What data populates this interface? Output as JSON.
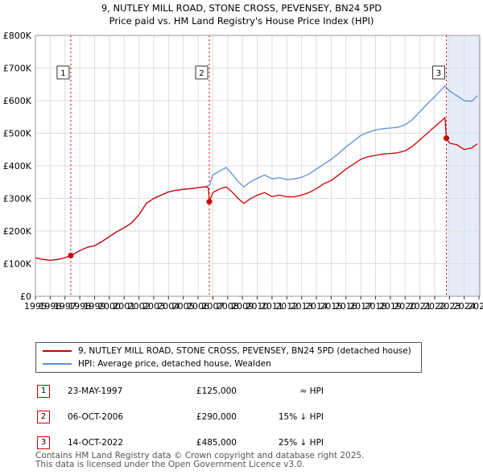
{
  "colors": {
    "property_line": "#cc0000",
    "hpi_line": "#5b8fd6",
    "shade": "#e6edf8",
    "marker_border": "#cc0000",
    "grid": "#dddddd"
  },
  "chart_data": {
    "type": "line",
    "title": "9, NUTLEY MILL ROAD, STONE CROSS, PEVENSEY, BN24 5PD",
    "subtitle": "Price paid vs. HM Land Registry's House Price Index (HPI)",
    "xlim": [
      1995.0,
      2025.05
    ],
    "ylim": [
      0,
      800000
    ],
    "x_ticks": [
      1995,
      1996,
      1997,
      1998,
      1999,
      2000,
      2001,
      2002,
      2003,
      2004,
      2005,
      2006,
      2007,
      2008,
      2009,
      2010,
      2011,
      2012,
      2013,
      2014,
      2015,
      2016,
      2017,
      2018,
      2019,
      2020,
      2021,
      2022,
      2023,
      2024,
      2025
    ],
    "y_ticks": [
      {
        "value": 0,
        "label": "£0"
      },
      {
        "value": 100000,
        "label": "£100K"
      },
      {
        "value": 200000,
        "label": "£200K"
      },
      {
        "value": 300000,
        "label": "£300K"
      },
      {
        "value": 400000,
        "label": "£400K"
      },
      {
        "value": 500000,
        "label": "£500K"
      },
      {
        "value": 600000,
        "label": "£600K"
      },
      {
        "value": 700000,
        "label": "£700K"
      },
      {
        "value": 800000,
        "label": "£800K"
      }
    ],
    "grid": true,
    "shaded_periods": [
      [
        2022.79,
        2025.05
      ]
    ],
    "series": [
      {
        "name": "9, NUTLEY MILL ROAD, STONE CROSS, PEVENSEY, BN24 5PD (detached house)",
        "color": "#cc0000",
        "x": [
          1995.0,
          1995.5,
          1996.0,
          1996.5,
          1997.0,
          1997.39,
          1998.0,
          1998.5,
          1999.0,
          1999.5,
          2000.0,
          2000.5,
          2001.0,
          2001.5,
          2002.0,
          2002.5,
          2003.0,
          2003.5,
          2004.0,
          2004.5,
          2005.0,
          2005.5,
          2006.0,
          2006.5,
          2006.7,
          2006.76,
          2007.0,
          2007.5,
          2007.9,
          2008.3,
          2008.7,
          2009.1,
          2009.5,
          2010.0,
          2010.5,
          2011.0,
          2011.5,
          2012.0,
          2012.5,
          2013.0,
          2013.5,
          2014.0,
          2014.5,
          2015.0,
          2015.5,
          2016.0,
          2016.5,
          2017.0,
          2017.5,
          2018.0,
          2018.5,
          2019.0,
          2019.5,
          2020.0,
          2020.5,
          2021.0,
          2021.5,
          2022.0,
          2022.5,
          2022.7,
          2022.79,
          2023.0,
          2023.5,
          2024.0,
          2024.5,
          2024.9
        ],
        "values": [
          118000,
          113000,
          110000,
          113000,
          118000,
          125000,
          140000,
          150000,
          155000,
          168000,
          183000,
          198000,
          210000,
          225000,
          250000,
          285000,
          300000,
          310000,
          320000,
          325000,
          328000,
          330000,
          333000,
          336000,
          333000,
          290000,
          318000,
          330000,
          335000,
          320000,
          300000,
          285000,
          298000,
          310000,
          318000,
          306000,
          310000,
          305000,
          305000,
          310000,
          318000,
          330000,
          345000,
          355000,
          372000,
          390000,
          405000,
          420000,
          428000,
          432000,
          436000,
          438000,
          440000,
          446000,
          460000,
          480000,
          500000,
          520000,
          540000,
          548000,
          485000,
          470000,
          465000,
          450000,
          455000,
          468000
        ]
      },
      {
        "name": "HPI: Average price, detached house, Wealden",
        "color": "#5b8fd6",
        "x": [
          1995.0,
          1995.5,
          1996.0,
          1996.5,
          1997.0,
          1997.39,
          1998.0,
          1998.5,
          1999.0,
          1999.5,
          2000.0,
          2000.5,
          2001.0,
          2001.5,
          2002.0,
          2002.5,
          2003.0,
          2003.5,
          2004.0,
          2004.5,
          2005.0,
          2005.5,
          2006.0,
          2006.5,
          2006.76,
          2007.0,
          2007.5,
          2007.9,
          2008.3,
          2008.7,
          2009.1,
          2009.5,
          2010.0,
          2010.5,
          2011.0,
          2011.5,
          2012.0,
          2012.5,
          2013.0,
          2013.5,
          2014.0,
          2014.5,
          2015.0,
          2015.5,
          2016.0,
          2016.5,
          2017.0,
          2017.5,
          2018.0,
          2018.5,
          2019.0,
          2019.5,
          2020.0,
          2020.5,
          2021.0,
          2021.5,
          2022.0,
          2022.5,
          2022.7,
          2022.79,
          2023.0,
          2023.5,
          2024.0,
          2024.5,
          2024.9
        ],
        "values": [
          118000,
          113000,
          110000,
          113000,
          118000,
          125000,
          140000,
          150000,
          155000,
          168000,
          183000,
          198000,
          210000,
          225000,
          250000,
          285000,
          300000,
          310000,
          320000,
          325000,
          328000,
          330000,
          333000,
          336000,
          340000,
          372000,
          385000,
          395000,
          375000,
          352000,
          335000,
          350000,
          362000,
          372000,
          360000,
          364000,
          358000,
          360000,
          365000,
          375000,
          390000,
          405000,
          420000,
          438000,
          458000,
          475000,
          493000,
          503000,
          510000,
          514000,
          516000,
          518000,
          526000,
          542000,
          566000,
          590000,
          612000,
          636000,
          645000,
          640000,
          630000,
          615000,
          600000,
          598000,
          615000
        ]
      }
    ],
    "sale_markers": [
      {
        "label": "1",
        "x": 1997.39,
        "value": 125000
      },
      {
        "label": "2",
        "x": 2006.76,
        "value": 290000
      },
      {
        "label": "3",
        "x": 2022.79,
        "value": 485000
      }
    ]
  },
  "legend": {
    "property": "9, NUTLEY MILL ROAD, STONE CROSS, PEVENSEY, BN24 5PD (detached house)",
    "hpi": "HPI: Average price, detached house, Wealden"
  },
  "sales": [
    {
      "marker": "1",
      "date": "23-MAY-1997",
      "price": "£125,000",
      "hpi": "≈ HPI"
    },
    {
      "marker": "2",
      "date": "06-OCT-2006",
      "price": "£290,000",
      "hpi": "15% ↓ HPI"
    },
    {
      "marker": "3",
      "date": "14-OCT-2022",
      "price": "£485,000",
      "hpi": "25% ↓ HPI"
    }
  ],
  "footer": {
    "line1": "Contains HM Land Registry data © Crown copyright and database right 2025.",
    "line2": "This data is licensed under the Open Government Licence v3.0."
  }
}
